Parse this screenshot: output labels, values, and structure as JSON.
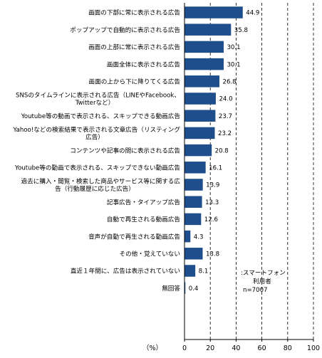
{
  "chart_data": {
    "type": "bar",
    "orientation": "horizontal",
    "categories": [
      [
        "画面の下部に常に表示される広告"
      ],
      [
        "ポップアップで自動的に表示される広告"
      ],
      [
        "画面の上部に常に表示される広告"
      ],
      [
        "画面全体に表示される広告"
      ],
      [
        "画面の上から下に降りてくる広告"
      ],
      [
        "SNSのタイムラインに表示される広告（LINEやFacebook、",
        "Twitterなど）"
      ],
      [
        "Youtube等の動画で表示される、スキップできる動画広告"
      ],
      [
        "Yahoo!などの検索結果で表示される文章広告（リスティング",
        "広告）"
      ],
      [
        "コンテンツや記事の間に表示される広告"
      ],
      [
        "Youtube等の動画で表示される、スキップできない動画広告"
      ],
      [
        "過去に購入・閲覧・検索した商品やサービス等に関する広",
        "告（行動履歴に応じた広告）"
      ],
      [
        "記事広告・タイアップ広告"
      ],
      [
        "自動で再生される動画広告"
      ],
      [
        "音声が自動で再生される動画広告"
      ],
      [
        "その他・覚えていない"
      ],
      [
        "直近１年間に、広告は表示されていない"
      ],
      [
        "無回答"
      ]
    ],
    "values": [
      44.9,
      35.8,
      30.1,
      30.1,
      26.8,
      24.0,
      23.7,
      23.2,
      20.8,
      16.1,
      13.9,
      13.3,
      12.6,
      4.3,
      13.8,
      8.1,
      0.4
    ],
    "value_labels": [
      "44.9",
      "35.8",
      "30.1",
      "30.1",
      "26.8",
      "24.0",
      "23.7",
      "23.2",
      "20.8",
      "16.1",
      "13.9",
      "13.3",
      "12.6",
      "4.3",
      "13.8",
      "8.1",
      "0.4"
    ],
    "xlim": [
      0,
      100
    ],
    "xticks": [
      "0",
      "20",
      "40",
      "60",
      "80",
      "100"
    ],
    "xlabel": "（%）",
    "gridlines": "dashed vertical at 20,40,60,80,100",
    "note": [
      ":スマートフォン",
      "利用者",
      "n=7007"
    ],
    "colors": {
      "bar": "#1f4e8c",
      "axis": "#000000",
      "grid": "#000000"
    }
  }
}
